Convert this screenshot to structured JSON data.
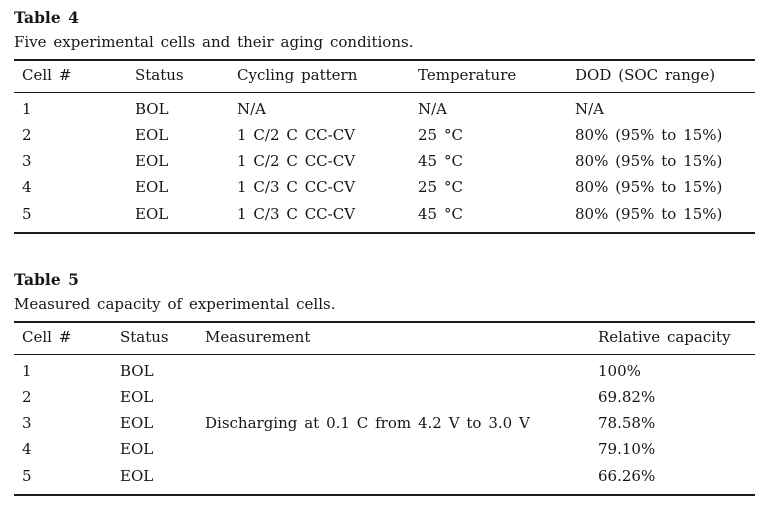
{
  "page": {
    "background_color": "#ffffff",
    "text_color": "#161616",
    "rule_color": "#1c1c1c"
  },
  "tables": [
    {
      "title": "Table 4",
      "caption": "Five experimental cells and their aging conditions.",
      "columns": [
        "Cell #",
        "Status",
        "Cycling pattern",
        "Temperature",
        "DOD (SOC range)"
      ],
      "rows": [
        [
          "1",
          "BOL",
          "N/A",
          "N/A",
          "N/A"
        ],
        [
          "2",
          "EOL",
          "1 C/2 C CC-CV",
          "25 °C",
          "80% (95% to 15%)"
        ],
        [
          "3",
          "EOL",
          "1 C/2 C CC-CV",
          "45 °C",
          "80% (95% to 15%)"
        ],
        [
          "4",
          "EOL",
          "1 C/3 C CC-CV",
          "25 °C",
          "80% (95% to 15%)"
        ],
        [
          "5",
          "EOL",
          "1 C/3 C CC-CV",
          "45 °C",
          "80% (95% to 15%)"
        ]
      ]
    },
    {
      "title": "Table 5",
      "caption": "Measured capacity of experimental cells.",
      "columns": [
        "Cell #",
        "Status",
        "Measurement",
        "Relative capacity"
      ],
      "rows": [
        [
          "1",
          "BOL",
          "",
          "100%"
        ],
        [
          "2",
          "EOL",
          "",
          "69.82%"
        ],
        [
          "3",
          "EOL",
          "Discharging at 0.1 C from 4.2 V to 3.0 V",
          "78.58%"
        ],
        [
          "4",
          "EOL",
          "",
          "79.10%"
        ],
        [
          "5",
          "EOL",
          "",
          "66.26%"
        ]
      ]
    }
  ]
}
